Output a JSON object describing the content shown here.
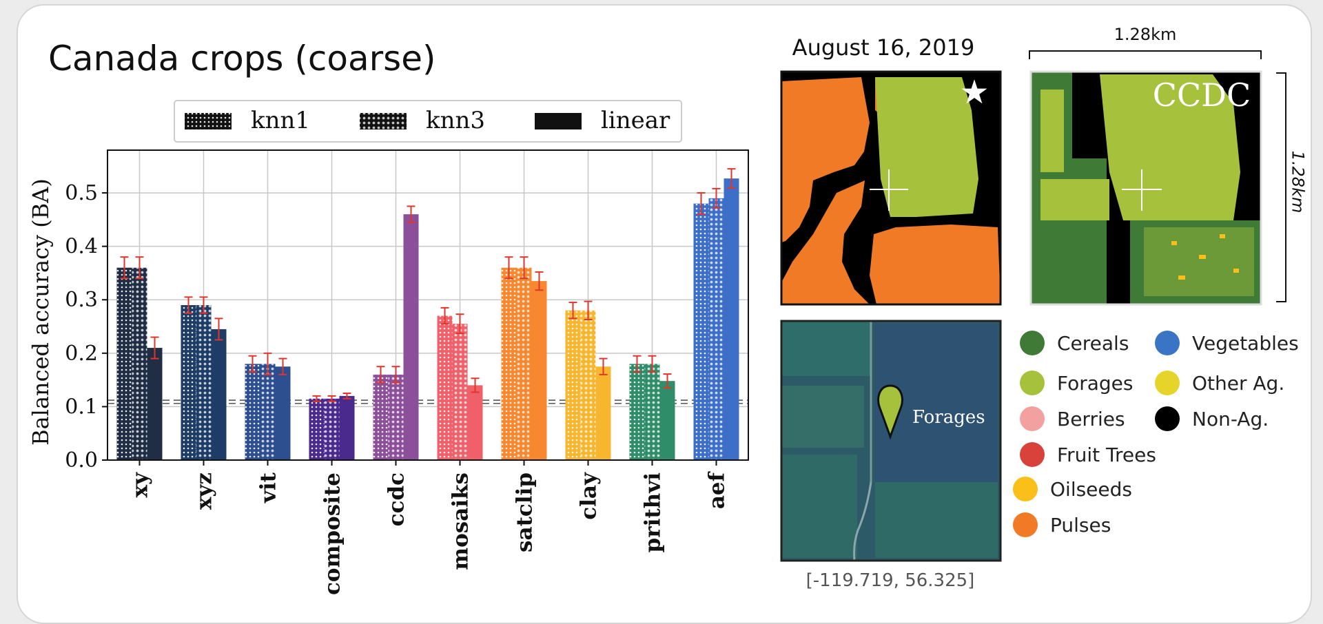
{
  "title": "Canada crops (coarse)",
  "chart_data": {
    "type": "bar",
    "title": "Canada crops (coarse)",
    "ylabel": "Balanced accuracy (BA)",
    "xlabel": "",
    "ylim": [
      0,
      0.58
    ],
    "yticks": [
      "0.0",
      "0.1",
      "0.2",
      "0.3",
      "0.4",
      "0.5"
    ],
    "grid": true,
    "legend_position": "top",
    "categories": [
      "xy",
      "xyz",
      "vit",
      "composite",
      "ccdc",
      "mosaiks",
      "satclip",
      "clay",
      "prithvi",
      "aef"
    ],
    "category_colors": [
      "#1f2d45",
      "#1e3d66",
      "#2d4f8f",
      "#4a2a8c",
      "#8c4f9a",
      "#f0606a",
      "#f7882f",
      "#f8b62f",
      "#2f8d6a",
      "#3d6fc8"
    ],
    "series": [
      {
        "name": "knn1",
        "values": [
          0.36,
          0.29,
          0.18,
          0.115,
          0.16,
          0.27,
          0.36,
          0.28,
          0.18,
          0.48
        ],
        "errors": [
          0.02,
          0.015,
          0.015,
          0.005,
          0.015,
          0.015,
          0.02,
          0.015,
          0.015,
          0.02
        ]
      },
      {
        "name": "knn3",
        "values": [
          0.36,
          0.29,
          0.18,
          0.115,
          0.16,
          0.255,
          0.36,
          0.28,
          0.18,
          0.49
        ],
        "errors": [
          0.02,
          0.015,
          0.02,
          0.005,
          0.015,
          0.018,
          0.02,
          0.017,
          0.015,
          0.018
        ]
      },
      {
        "name": "linear",
        "values": [
          0.21,
          0.245,
          0.175,
          0.12,
          0.46,
          0.14,
          0.335,
          0.175,
          0.148,
          0.527
        ],
        "errors": [
          0.02,
          0.02,
          0.015,
          0.005,
          0.015,
          0.013,
          0.017,
          0.015,
          0.013,
          0.018
        ]
      }
    ],
    "baselines": [
      0.112,
      0.106
    ]
  },
  "maps": {
    "date": "August 16, 2019",
    "ccdc_label": "CCDC",
    "scale_top": "1.28km",
    "scale_side": "1.28km",
    "marker_label": "Forages",
    "coords": "[-119.719, 56.325]",
    "star": "★"
  },
  "class_legend": [
    {
      "label": "Cereals",
      "color": "#3f7a36"
    },
    {
      "label": "Vegetables",
      "color": "#3a74c4"
    },
    {
      "label": "Forages",
      "color": "#a6c13c"
    },
    {
      "label": "Other Ag.",
      "color": "#e6d42a"
    },
    {
      "label": "Berries",
      "color": "#f2a0a0"
    },
    {
      "label": "Non-Ag.",
      "color": "#000000"
    },
    {
      "label": "Fruit Trees",
      "color": "#d8423a"
    },
    {
      "label": "Oilseeds",
      "color": "#fbbf1a"
    },
    {
      "label": "Pulses",
      "color": "#f07a26"
    }
  ]
}
